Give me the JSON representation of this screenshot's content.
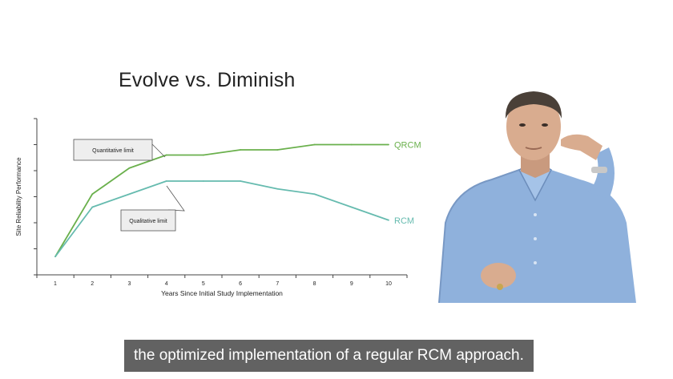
{
  "slide": {
    "title": "Evolve vs. Diminish"
  },
  "caption": {
    "text": "the optimized implementation of a regular RCM approach."
  },
  "chart_data": {
    "type": "line",
    "title": "Evolve vs. Diminish",
    "xlabel": "Years Since Initial Study Implementation",
    "ylabel": "Site Reliability Performance",
    "x": [
      1,
      2,
      3,
      4,
      5,
      6,
      7,
      8,
      9,
      10
    ],
    "xlim": [
      0.5,
      10.5
    ],
    "ylim": [
      0,
      6
    ],
    "yticks_labeled": false,
    "grid": false,
    "series": [
      {
        "name": "QRCM",
        "color": "#6ab04c",
        "values": [
          0.7,
          3.1,
          4.1,
          4.6,
          4.6,
          4.8,
          4.8,
          5.0,
          5.0,
          5.0
        ]
      },
      {
        "name": "RCM",
        "color": "#66bbaf",
        "values": [
          0.7,
          2.6,
          3.1,
          3.6,
          3.6,
          3.6,
          3.3,
          3.1,
          2.6,
          2.1
        ]
      }
    ],
    "annotations": [
      {
        "text": "Quantitative limit",
        "target_series": "QRCM",
        "target_x": 4
      },
      {
        "text": "Qualitative limit",
        "target_series": "RCM",
        "target_x": 4
      }
    ]
  },
  "colors": {
    "axis": "#444444",
    "text": "#222222",
    "callout_fill": "#eeeeee",
    "callout_border": "#555555",
    "caption_bg": "#464646"
  },
  "presenter": {
    "icon": "presenter-photo"
  }
}
